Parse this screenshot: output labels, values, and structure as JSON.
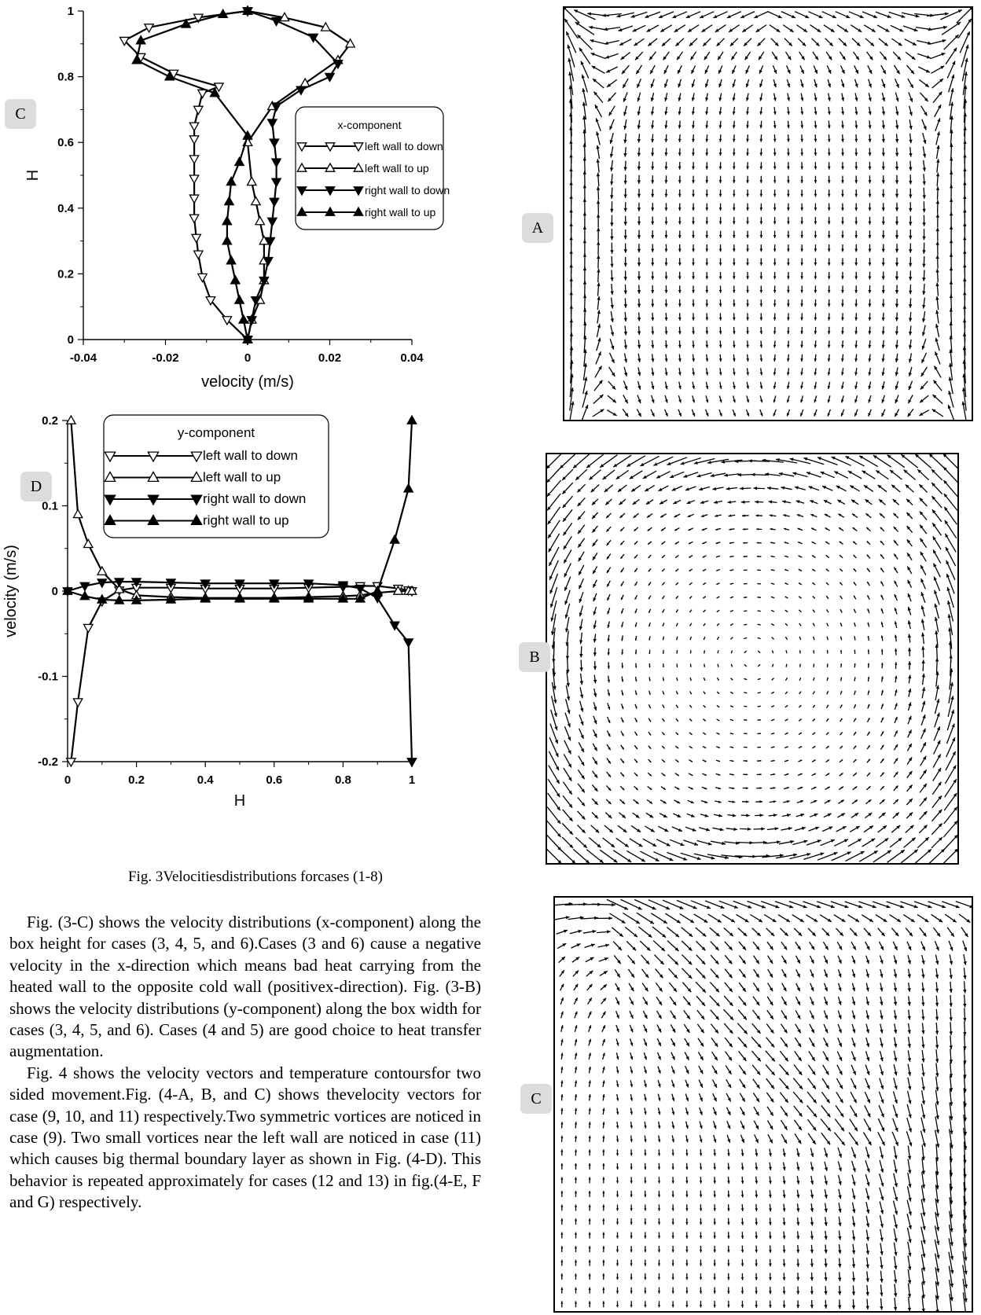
{
  "badges": {
    "chart_c": "C",
    "chart_d": "D",
    "vec_a": "A",
    "vec_b": "B",
    "vec_c": "C"
  },
  "caption": "Fig. 3Velocitiesdistributions forcases (1-8)",
  "paragraphs": [
    "Fig. (3-C) shows the velocity distributions (x-component) along the box height for cases (3, 4, 5, and 6).Cases (3 and 6) cause a negative velocity in the x-direction which means bad heat carrying from the heated wall to the opposite cold wall (positivex-direction). Fig. (3-B) shows the velocity distributions (y-component) along the box width for cases (3, 4, 5, and 6). Cases (4 and 5) are good choice to heat transfer augmentation.",
    "Fig. 4 shows the velocity vectors and temperature contoursfor two sided movement.Fig. (4-A, B, and C) shows thevelocity vectors for case (9, 10, and 11) respectively.Two symmetric vortices are noticed in case (9). Two small vortices near the left wall are noticed in case (11) which causes big thermal boundary layer as shown in Fig. (4-D). This behavior is repeated approximately for cases (12 and 13) in fig.(4-E, F and G) respectively."
  ],
  "chart_data": [
    {
      "type": "line",
      "title": "",
      "xlabel": "velocity (m/s)",
      "ylabel": "H",
      "xlim": [
        -0.04,
        0.04
      ],
      "ylim": [
        0,
        1
      ],
      "xticks": [
        "-0.04",
        "-0.02",
        "0",
        "0.02",
        "0.04"
      ],
      "yticks": [
        "0",
        "0.2",
        "0.4",
        "0.6",
        "0.8",
        "1"
      ],
      "legend_title": "x-component",
      "legend_position": "right",
      "series": [
        {
          "name": "left wall to down",
          "marker": "triangle-down-open",
          "x": [
            0,
            -0.005,
            -0.009,
            -0.011,
            -0.012,
            -0.0125,
            -0.013,
            -0.013,
            -0.013,
            -0.013,
            -0.013,
            -0.013,
            -0.012,
            -0.011,
            -0.007,
            -0.018,
            -0.026,
            -0.03,
            -0.024,
            -0.012,
            0
          ],
          "y": [
            0,
            0.06,
            0.12,
            0.19,
            0.26,
            0.31,
            0.37,
            0.43,
            0.49,
            0.55,
            0.61,
            0.65,
            0.7,
            0.75,
            0.77,
            0.81,
            0.86,
            0.91,
            0.95,
            0.98,
            1
          ]
        },
        {
          "name": "left wall to up",
          "marker": "triangle-up-open",
          "x": [
            0,
            0.001,
            0.003,
            0.004,
            0.004,
            0.004,
            0.003,
            0.002,
            0.001,
            0,
            0.006,
            0.014,
            0.022,
            0.025,
            0.019,
            0.009,
            0
          ],
          "y": [
            0,
            0.06,
            0.12,
            0.18,
            0.24,
            0.3,
            0.36,
            0.42,
            0.48,
            0.6,
            0.71,
            0.78,
            0.85,
            0.9,
            0.95,
            0.98,
            1
          ]
        },
        {
          "name": "right wall to down",
          "marker": "triangle-down-filled",
          "x": [
            0,
            0.001,
            0.002,
            0.004,
            0.005,
            0.0055,
            0.006,
            0.0065,
            0.007,
            0.007,
            0.0065,
            0.006,
            0.007,
            0.013,
            0.02,
            0.022,
            0.016,
            0.007,
            0
          ],
          "y": [
            0,
            0.06,
            0.12,
            0.18,
            0.24,
            0.3,
            0.36,
            0.42,
            0.48,
            0.54,
            0.6,
            0.66,
            0.71,
            0.76,
            0.8,
            0.84,
            0.92,
            0.97,
            1
          ]
        },
        {
          "name": "right wall to up",
          "marker": "triangle-up-filled",
          "x": [
            0,
            -0.001,
            -0.002,
            -0.003,
            -0.004,
            -0.005,
            -0.005,
            -0.0045,
            -0.004,
            -0.002,
            0,
            -0.008,
            -0.019,
            -0.027,
            -0.026,
            -0.015,
            -0.006,
            0
          ],
          "y": [
            0,
            0.06,
            0.12,
            0.18,
            0.24,
            0.3,
            0.36,
            0.42,
            0.48,
            0.54,
            0.62,
            0.75,
            0.8,
            0.85,
            0.91,
            0.96,
            0.99,
            1
          ]
        }
      ]
    },
    {
      "type": "line",
      "title": "",
      "xlabel": "H",
      "ylabel": "velocity (m/s)",
      "xlim": [
        0,
        1
      ],
      "ylim": [
        -0.2,
        0.2
      ],
      "xticks": [
        "0",
        "0.2",
        "0.4",
        "0.6",
        "0.8",
        "1"
      ],
      "yticks": [
        "-0.2",
        "-0.1",
        "0",
        "0.1",
        "0.2"
      ],
      "legend_title": "y-component",
      "legend_position": "top-left",
      "series": [
        {
          "name": "left wall to down",
          "marker": "triangle-down-open",
          "x": [
            0.01,
            0.03,
            0.06,
            0.1,
            0.15,
            0.2,
            0.3,
            0.4,
            0.5,
            0.6,
            0.7,
            0.8,
            0.85,
            0.9,
            0.96,
            0.99,
            1
          ],
          "y": [
            -0.2,
            -0.13,
            -0.043,
            -0.012,
            0.001,
            0.004,
            0.004,
            0.003,
            0.003,
            0.003,
            0.004,
            0.005,
            0.006,
            0.006,
            0.003,
            0.001,
            0
          ]
        },
        {
          "name": "left wall to up",
          "marker": "triangle-up-open",
          "x": [
            0.01,
            0.03,
            0.06,
            0.1,
            0.15,
            0.2,
            0.3,
            0.4,
            0.5,
            0.6,
            0.7,
            0.8,
            0.85,
            0.9,
            0.96,
            0.99,
            1
          ],
          "y": [
            0.2,
            0.09,
            0.055,
            0.023,
            0.002,
            -0.005,
            -0.007,
            -0.008,
            -0.008,
            -0.008,
            -0.007,
            -0.006,
            -0.005,
            -0.002,
            0.0,
            0.0,
            0
          ]
        },
        {
          "name": "right wall to down",
          "marker": "triangle-down-filled",
          "x": [
            0,
            0.05,
            0.1,
            0.15,
            0.2,
            0.3,
            0.4,
            0.5,
            0.6,
            0.7,
            0.8,
            0.85,
            0.9,
            0.95,
            0.99,
            1
          ],
          "y": [
            0,
            0.006,
            0.01,
            0.011,
            0.011,
            0.01,
            0.009,
            0.009,
            0.009,
            0.009,
            0.007,
            0.003,
            -0.008,
            -0.04,
            -0.06,
            -0.2
          ]
        },
        {
          "name": "right wall to up",
          "marker": "triangle-up-filled",
          "x": [
            0,
            0.05,
            0.1,
            0.15,
            0.2,
            0.3,
            0.4,
            0.5,
            0.6,
            0.7,
            0.8,
            0.85,
            0.9,
            0.95,
            0.99,
            1
          ],
          "y": [
            0,
            -0.006,
            -0.01,
            -0.011,
            -0.011,
            -0.01,
            -0.009,
            -0.009,
            -0.009,
            -0.009,
            -0.009,
            -0.009,
            0.0,
            0.06,
            0.12,
            0.2
          ]
        }
      ]
    }
  ]
}
